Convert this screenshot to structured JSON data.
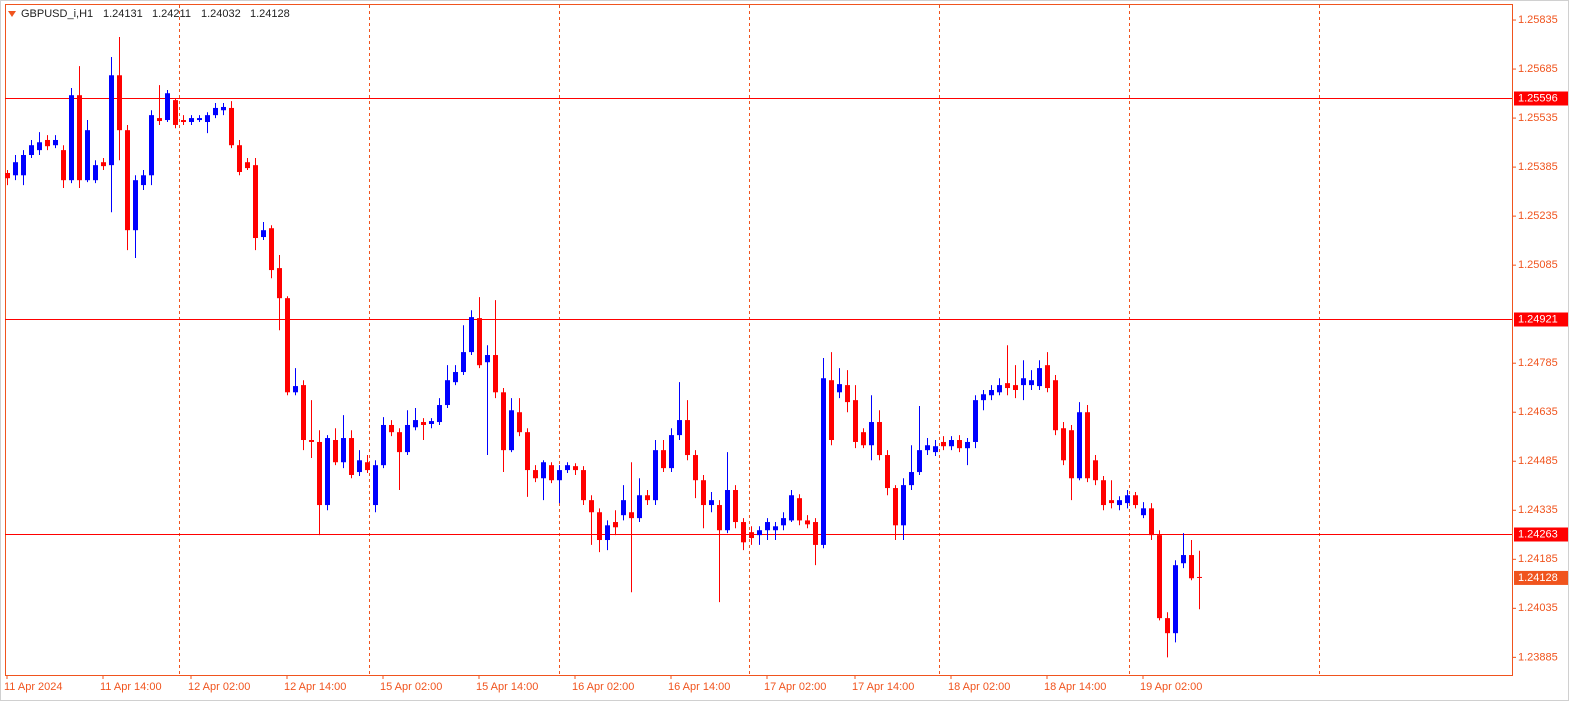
{
  "chart_data": {
    "type": "candlestick",
    "title": "GBPUSD_i,H1",
    "up_color": "#0000ff",
    "down_color": "#ff0000",
    "ylim": [
      1.23831,
      1.25881
    ],
    "yticks": [
      1.25835,
      1.25685,
      1.25535,
      1.25385,
      1.25235,
      1.25085,
      1.24785,
      1.24635,
      1.24485,
      1.24335,
      1.24185,
      1.24035,
      1.23885
    ],
    "levels": [
      1.25596,
      1.24921,
      1.24263
    ],
    "xticks": [
      {
        "value": 0,
        "label": "11 Apr 2024"
      },
      {
        "value": 12,
        "label": "11 Apr 14:00"
      },
      {
        "value": 23,
        "label": "12 Apr 02:00"
      },
      {
        "value": 35,
        "label": "12 Apr 14:00"
      },
      {
        "value": 47,
        "label": "15 Apr 02:00"
      },
      {
        "value": 59,
        "label": "15 Apr 14:00"
      },
      {
        "value": 71,
        "label": "16 Apr 02:00"
      },
      {
        "value": 83,
        "label": "16 Apr 14:00"
      },
      {
        "value": 95,
        "label": "17 Apr 02:00"
      },
      {
        "value": 106,
        "label": "17 Apr 14:00"
      },
      {
        "value": 118,
        "label": "18 Apr 02:00"
      },
      {
        "value": 130,
        "label": "18 Apr 14:00"
      },
      {
        "value": 142,
        "label": "19 Apr 02:00"
      }
    ],
    "candles": [
      [
        1.25367,
        1.25376,
        1.2533,
        1.25351
      ],
      [
        1.2536,
        1.25422,
        1.25345,
        1.254
      ],
      [
        1.2536,
        1.25437,
        1.2533,
        1.25422
      ],
      [
        1.25422,
        1.25468,
        1.25413,
        1.25452
      ],
      [
        1.25437,
        1.25492,
        1.25422,
        1.25461
      ],
      [
        1.25468,
        1.25483,
        1.25437,
        1.25449
      ],
      [
        1.25452,
        1.25483,
        1.25443,
        1.25468
      ],
      [
        1.25437,
        1.25452,
        1.25321,
        1.25345
      ],
      [
        1.25345,
        1.25627,
        1.25336,
        1.25605
      ],
      [
        1.25605,
        1.25694,
        1.25321,
        1.25345
      ],
      [
        1.25345,
        1.25529,
        1.25339,
        1.25498
      ],
      [
        1.25345,
        1.25406,
        1.25336,
        1.25391
      ],
      [
        1.254,
        1.25413,
        1.25376,
        1.25388
      ],
      [
        1.25391,
        1.25722,
        1.25247,
        1.25666
      ],
      [
        1.25666,
        1.25783,
        1.25406,
        1.25498
      ],
      [
        1.25498,
        1.25514,
        1.25131,
        1.25192
      ],
      [
        1.25192,
        1.2536,
        1.25107,
        1.25345
      ],
      [
        1.2533,
        1.25376,
        1.25315,
        1.2536
      ],
      [
        1.2536,
        1.25559,
        1.2533,
        1.25544
      ],
      [
        1.25535,
        1.25636,
        1.25514,
        1.25526
      ],
      [
        1.25529,
        1.25621,
        1.25523,
        1.25611
      ],
      [
        1.2559,
        1.25596,
        1.25504,
        1.25514
      ],
      [
        1.25529,
        1.25544,
        1.25514,
        1.25523
      ],
      [
        1.25523,
        1.25544,
        1.25514,
        1.25535
      ],
      [
        1.25529,
        1.25544,
        1.25523,
        1.25535
      ],
      [
        1.25523,
        1.25553,
        1.25489,
        1.25544
      ],
      [
        1.25544,
        1.25581,
        1.25535,
        1.25566
      ],
      [
        1.25559,
        1.25581,
        1.25544,
        1.25569
      ],
      [
        1.25566,
        1.25587,
        1.25443,
        1.25452
      ],
      [
        1.25452,
        1.25468,
        1.2536,
        1.2537
      ],
      [
        1.254,
        1.25413,
        1.25376,
        1.25382
      ],
      [
        1.25391,
        1.25413,
        1.25131,
        1.25168
      ],
      [
        1.25171,
        1.25217,
        1.25162,
        1.25192
      ],
      [
        1.25198,
        1.25207,
        1.25045,
        1.2507
      ],
      [
        1.25076,
        1.25116,
        1.24886,
        1.24984
      ],
      [
        1.24984,
        1.2499,
        1.24687,
        1.24696
      ],
      [
        1.24696,
        1.2477,
        1.24687,
        1.24715
      ],
      [
        1.24718,
        1.24733,
        1.24519,
        1.2455
      ],
      [
        1.2455,
        1.24672,
        1.24495,
        1.24544
      ],
      [
        1.24544,
        1.2458,
        1.24259,
        1.24351
      ],
      [
        1.24351,
        1.24565,
        1.24335,
        1.24556
      ],
      [
        1.2455,
        1.24586,
        1.24473,
        1.24482
      ],
      [
        1.24482,
        1.24626,
        1.24464,
        1.24556
      ],
      [
        1.24556,
        1.2458,
        1.24433,
        1.24443
      ],
      [
        1.24452,
        1.24519,
        1.2444,
        1.24488
      ],
      [
        1.24482,
        1.24504,
        1.24449,
        1.24458
      ],
      [
        1.24351,
        1.24488,
        1.24329,
        1.24473
      ],
      [
        1.24473,
        1.2462,
        1.24464,
        1.24596
      ],
      [
        1.24596,
        1.24611,
        1.24562,
        1.24574
      ],
      [
        1.24574,
        1.24586,
        1.24397,
        1.24513
      ],
      [
        1.24513,
        1.24641,
        1.24504,
        1.24596
      ],
      [
        1.24589,
        1.24648,
        1.2458,
        1.24611
      ],
      [
        1.24605,
        1.24617,
        1.2455,
        1.24596
      ],
      [
        1.24599,
        1.24617,
        1.24586,
        1.24608
      ],
      [
        1.24605,
        1.24678,
        1.24596,
        1.24657
      ],
      [
        1.24657,
        1.24779,
        1.24648,
        1.24733
      ],
      [
        1.24727,
        1.24779,
        1.24718,
        1.24758
      ],
      [
        1.24758,
        1.24901,
        1.24749,
        1.24819
      ],
      [
        1.24819,
        1.24947,
        1.2481,
        1.24926
      ],
      [
        1.24923,
        1.24987,
        1.2477,
        1.24779
      ],
      [
        1.24788,
        1.2484,
        1.24504,
        1.2481
      ],
      [
        1.2481,
        1.24978,
        1.24678,
        1.24696
      ],
      [
        1.24696,
        1.24709,
        1.24452,
        1.24519
      ],
      [
        1.24519,
        1.24678,
        1.24513,
        1.24641
      ],
      [
        1.24635,
        1.24678,
        1.24562,
        1.24574
      ],
      [
        1.24574,
        1.24586,
        1.24376,
        1.24458
      ],
      [
        1.24458,
        1.24473,
        1.24421,
        1.24433
      ],
      [
        1.24433,
        1.24488,
        1.24366,
        1.24482
      ],
      [
        1.24473,
        1.24482,
        1.24418,
        1.24427
      ],
      [
        1.24427,
        1.24473,
        1.24357,
        1.24458
      ],
      [
        1.24458,
        1.24482,
        1.24449,
        1.24473
      ],
      [
        1.2447,
        1.24479,
        1.24443,
        1.24458
      ],
      [
        1.24458,
        1.2447,
        1.24351,
        1.24366
      ],
      [
        1.24366,
        1.24381,
        1.24229,
        1.24329
      ],
      [
        1.24329,
        1.24341,
        1.24207,
        1.24244
      ],
      [
        1.24244,
        1.24304,
        1.24213,
        1.24289
      ],
      [
        1.24299,
        1.24335,
        1.24259,
        1.24283
      ],
      [
        1.2432,
        1.24412,
        1.24304,
        1.24366
      ],
      [
        1.24329,
        1.24482,
        1.24084,
        1.24311
      ],
      [
        1.24311,
        1.24433,
        1.24299,
        1.24381
      ],
      [
        1.24381,
        1.24397,
        1.24351,
        1.24366
      ],
      [
        1.24366,
        1.2455,
        1.24351,
        1.24519
      ],
      [
        1.24519,
        1.2455,
        1.24452,
        1.24464
      ],
      [
        1.24464,
        1.24586,
        1.24452,
        1.24565
      ],
      [
        1.24565,
        1.24727,
        1.2455,
        1.24611
      ],
      [
        1.24611,
        1.24672,
        1.24488,
        1.24504
      ],
      [
        1.24504,
        1.24519,
        1.24372,
        1.24427
      ],
      [
        1.24427,
        1.24443,
        1.2428,
        1.24351
      ],
      [
        1.24351,
        1.24391,
        1.24329,
        1.24366
      ],
      [
        1.24351,
        1.24366,
        1.24054,
        1.24274
      ],
      [
        1.24274,
        1.24513,
        1.24265,
        1.24397
      ],
      [
        1.24397,
        1.24412,
        1.2428,
        1.24299
      ],
      [
        1.24299,
        1.24311,
        1.24213,
        1.24237
      ],
      [
        1.24268,
        1.24286,
        1.24229,
        1.2425
      ],
      [
        1.24259,
        1.24286,
        1.24229,
        1.24274
      ],
      [
        1.24274,
        1.24311,
        1.24244,
        1.24299
      ],
      [
        1.24274,
        1.24299,
        1.24244,
        1.24286
      ],
      [
        1.24289,
        1.24329,
        1.24274,
        1.24311
      ],
      [
        1.24304,
        1.24397,
        1.24299,
        1.24381
      ],
      [
        1.24372,
        1.24384,
        1.24289,
        1.24304
      ],
      [
        1.24304,
        1.2432,
        1.2428,
        1.24292
      ],
      [
        1.24299,
        1.24311,
        1.24167,
        1.24229
      ],
      [
        1.24229,
        1.24801,
        1.24219,
        1.24739
      ],
      [
        1.24733,
        1.24819,
        1.24534,
        1.2455
      ],
      [
        1.24696,
        1.2477,
        1.24678,
        1.24721
      ],
      [
        1.24718,
        1.24764,
        1.24635,
        1.24666
      ],
      [
        1.24672,
        1.24718,
        1.24525,
        1.24544
      ],
      [
        1.24574,
        1.24586,
        1.24525,
        1.24534
      ],
      [
        1.24534,
        1.24687,
        1.24488,
        1.24605
      ],
      [
        1.24605,
        1.24641,
        1.24488,
        1.24504
      ],
      [
        1.24504,
        1.24519,
        1.24381,
        1.24403
      ],
      [
        1.24403,
        1.24412,
        1.24244,
        1.24289
      ],
      [
        1.24289,
        1.24433,
        1.24244,
        1.24412
      ],
      [
        1.24412,
        1.24534,
        1.24397,
        1.24452
      ],
      [
        1.24452,
        1.24654,
        1.24443,
        1.24519
      ],
      [
        1.24519,
        1.24556,
        1.24504,
        1.24534
      ],
      [
        1.24513,
        1.2455,
        1.24501,
        1.24531
      ],
      [
        1.24544,
        1.24562,
        1.24519,
        1.24531
      ],
      [
        1.24531,
        1.24562,
        1.24519,
        1.2455
      ],
      [
        1.2455,
        1.24565,
        1.24513,
        1.24525
      ],
      [
        1.24525,
        1.24556,
        1.24473,
        1.24544
      ],
      [
        1.24544,
        1.24687,
        1.24525,
        1.24672
      ],
      [
        1.24672,
        1.24703,
        1.24641,
        1.2469
      ],
      [
        1.24687,
        1.24718,
        1.24672,
        1.24703
      ],
      [
        1.24696,
        1.24739,
        1.24687,
        1.24718
      ],
      [
        1.24724,
        1.2484,
        1.24687,
        1.24709
      ],
      [
        1.24718,
        1.24779,
        1.24678,
        1.24703
      ],
      [
        1.24718,
        1.24794,
        1.24672,
        1.24739
      ],
      [
        1.24718,
        1.24764,
        1.24703,
        1.24733
      ],
      [
        1.24715,
        1.24794,
        1.24703,
        1.2477
      ],
      [
        1.24779,
        1.24819,
        1.24696,
        1.24709
      ],
      [
        1.24733,
        1.24749,
        1.24565,
        1.2458
      ],
      [
        1.24586,
        1.24605,
        1.24473,
        1.24488
      ],
      [
        1.2458,
        1.24596,
        1.24366,
        1.24433
      ],
      [
        1.24433,
        1.24666,
        1.24427,
        1.24635
      ],
      [
        1.24635,
        1.24657,
        1.24421,
        1.24433
      ],
      [
        1.24488,
        1.24504,
        1.24412,
        1.24427
      ],
      [
        1.24427,
        1.2444,
        1.24335,
        1.24351
      ],
      [
        1.24366,
        1.24427,
        1.24341,
        1.24357
      ],
      [
        1.24351,
        1.24378,
        1.24335,
        1.24366
      ],
      [
        1.24357,
        1.24397,
        1.24341,
        1.24381
      ],
      [
        1.24381,
        1.24391,
        1.24341,
        1.24351
      ],
      [
        1.2432,
        1.2436,
        1.24311,
        1.24341
      ],
      [
        1.24341,
        1.24357,
        1.24244,
        1.24259
      ],
      [
        1.24259,
        1.24274,
        1.23998,
        1.24005
      ],
      [
        1.24005,
        1.24023,
        1.23885,
        1.23959
      ],
      [
        1.23959,
        1.24182,
        1.23931,
        1.24167
      ],
      [
        1.24173,
        1.24265,
        1.24158,
        1.24198
      ],
      [
        1.24198,
        1.24244,
        1.24121,
        1.24127
      ],
      [
        1.24131,
        1.24211,
        1.24032,
        1.24128
      ]
    ]
  }
}
